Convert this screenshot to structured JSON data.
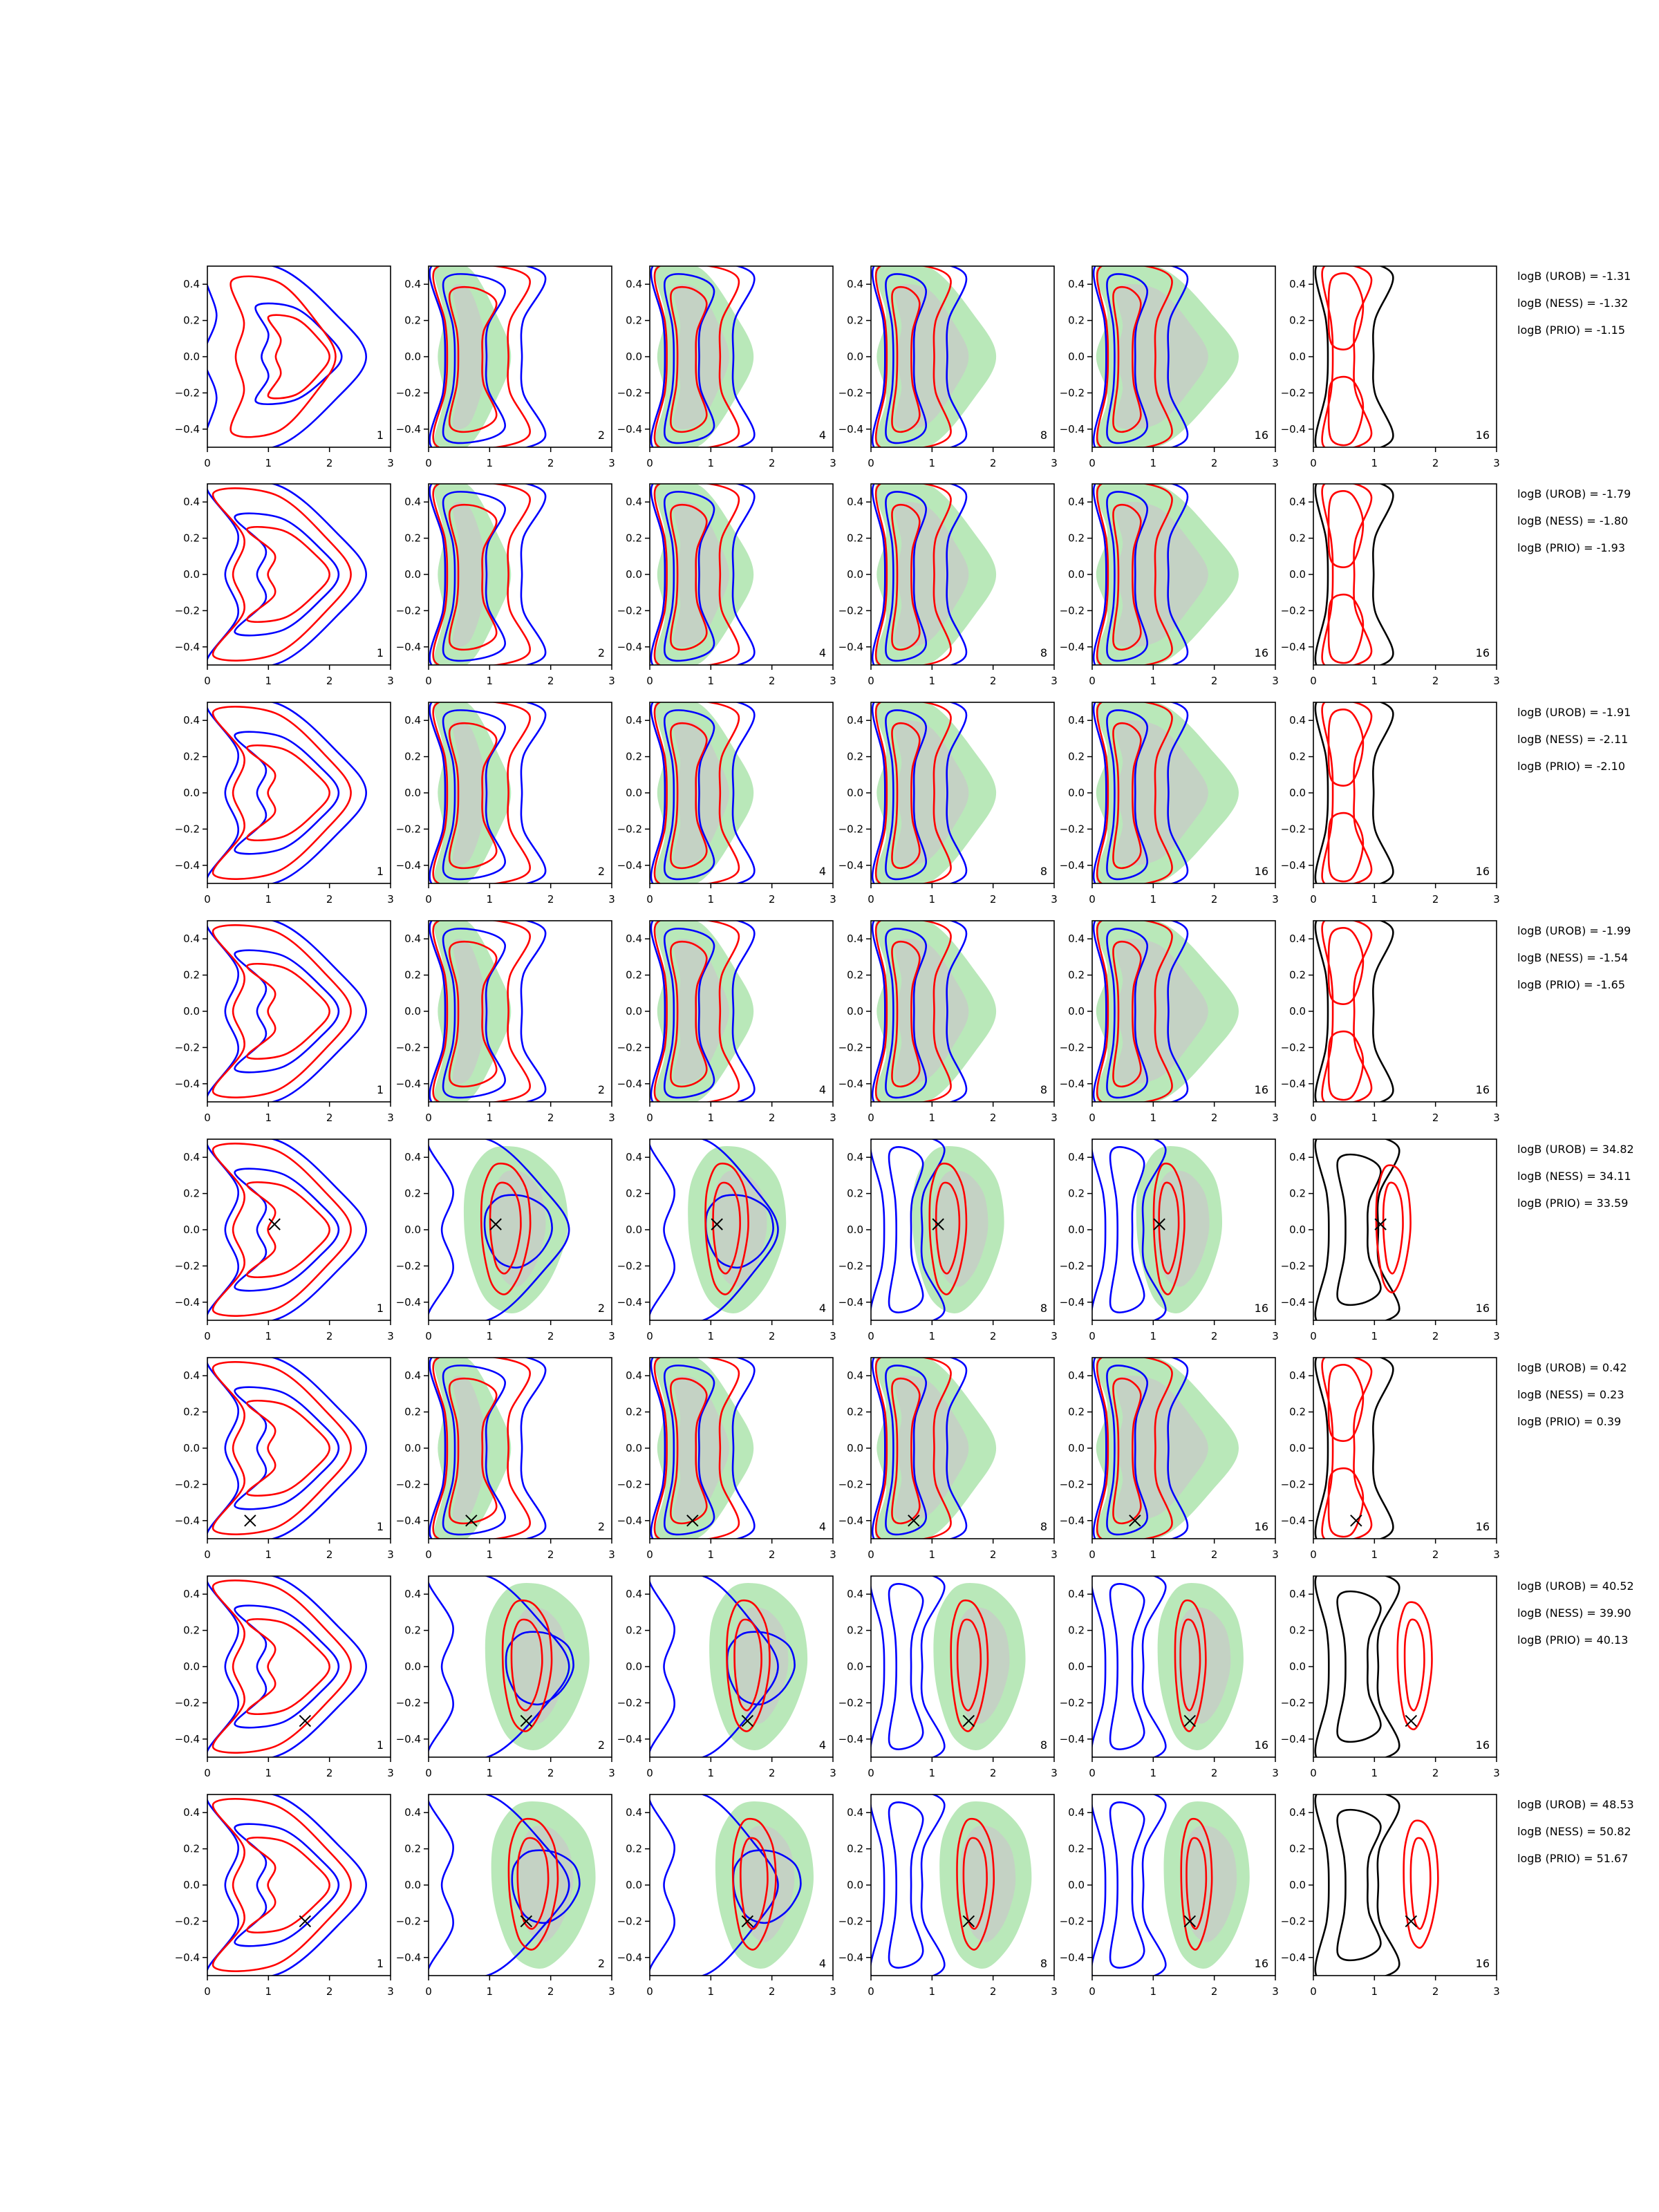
{
  "chart_data": {
    "type": "contour-grid",
    "rows": 8,
    "cols": 6,
    "xlim": [
      0,
      3
    ],
    "ylim": [
      -0.5,
      0.5
    ],
    "xticks": [
      "0",
      "1",
      "2",
      "3"
    ],
    "yticks": [
      "0.4",
      "0.2",
      "0.0",
      "−0.2",
      "−0.4"
    ],
    "column_labels": [
      "1",
      "2",
      "4",
      "8",
      "16",
      "16"
    ],
    "colors": {
      "blue": "#0000ff",
      "red": "#ff0000",
      "black": "#000000",
      "green_fill": "#b9e8b9",
      "gray_fill": "#c9c9c9",
      "axis": "#000000"
    },
    "grid": false,
    "panels": [
      {
        "marker": null,
        "logB": [
          "logB (UROB) = -1.31",
          "logB (NESS) = -1.32",
          "logB (PRIO) = -1.15"
        ]
      },
      {
        "marker": null,
        "logB": [
          "logB (UROB) = -1.79",
          "logB (NESS) = -1.80",
          "logB (PRIO) = -1.93"
        ]
      },
      {
        "marker": null,
        "logB": [
          "logB (UROB) = -1.91",
          "logB (NESS) = -2.11",
          "logB (PRIO) = -2.10"
        ]
      },
      {
        "marker": null,
        "logB": [
          "logB (UROB) = -1.99",
          "logB (NESS) = -1.54",
          "logB (PRIO) = -1.65"
        ]
      },
      {
        "marker": [
          1.1,
          0.03
        ],
        "logB": [
          "logB (UROB) = 34.82",
          "logB (NESS) = 34.11",
          "logB (PRIO) = 33.59"
        ]
      },
      {
        "marker": [
          0.7,
          -0.4
        ],
        "logB": [
          "logB (UROB) = 0.42",
          "logB (NESS) = 0.23",
          "logB (PRIO) = 0.39"
        ]
      },
      {
        "marker": [
          1.6,
          -0.3
        ],
        "logB": [
          "logB (UROB) = 40.52",
          "logB (NESS) = 39.90",
          "logB (PRIO) = 40.13"
        ]
      },
      {
        "marker": [
          1.6,
          -0.2
        ],
        "logB": [
          "logB (UROB) = 48.53",
          "logB (NESS) = 50.82",
          "logB (PRIO) = 51.67"
        ]
      }
    ]
  }
}
